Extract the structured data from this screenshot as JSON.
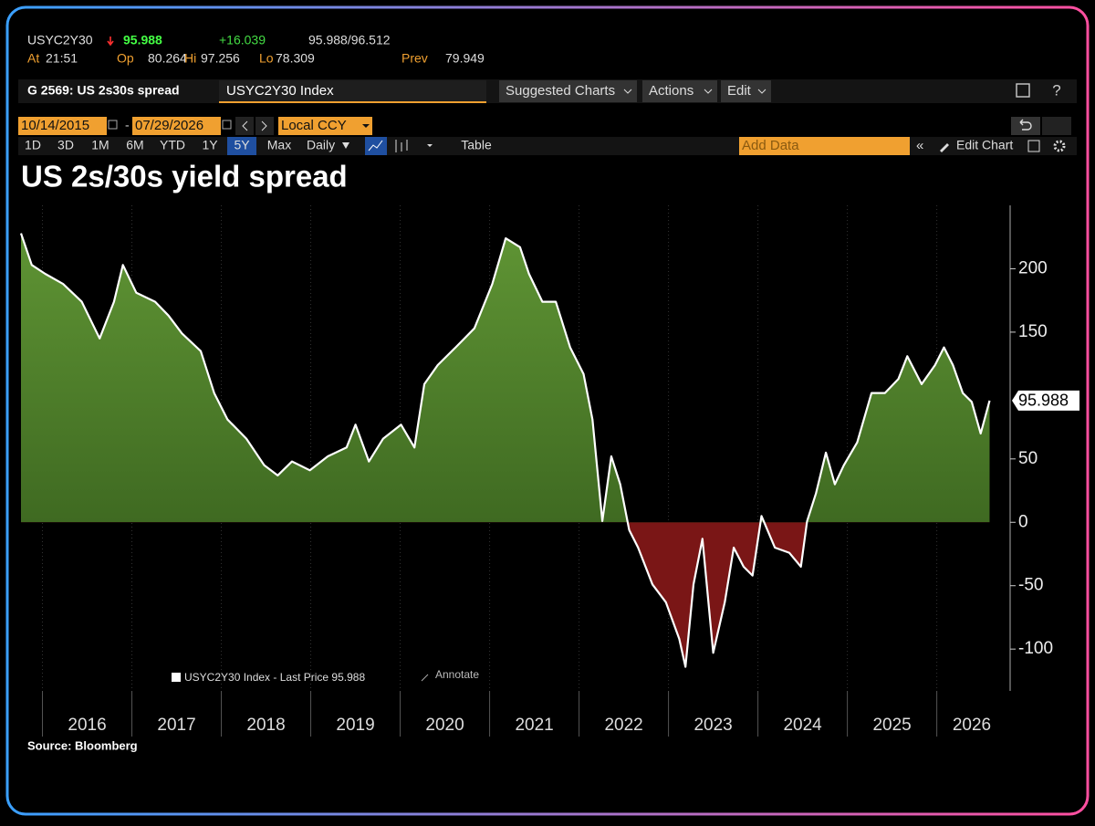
{
  "header": {
    "ticker": "USYC2Y30",
    "last": "95.988",
    "change": "+16.039",
    "bid_ask": "95.988/96.512",
    "at_label": "At",
    "time": "21:51",
    "open_label": "Op",
    "open": "80.264",
    "high_label": "Hi",
    "high": "97.256",
    "low_label": "Lo",
    "low": "78.309",
    "prev_label": "Prev",
    "prev": "79.949"
  },
  "toolbar": {
    "function": "G 2569: US 2s30s spread",
    "security": "USYC2Y30 Index",
    "buttons": [
      "Suggested Charts",
      "Actions",
      "Edit"
    ],
    "start_date": "10/14/2015",
    "date_separator": "-",
    "end_date": "07/29/2026",
    "currency": "Local CCY",
    "periods": [
      "1D",
      "3D",
      "1M",
      "6M",
      "YTD",
      "1Y",
      "5Y",
      "Max"
    ],
    "selected_period": 6,
    "frequency": "Daily",
    "table": "Table",
    "add_data": "Add Data",
    "edit_chart": "Edit Chart"
  },
  "chart_data": {
    "type": "area",
    "title": "US 2s/30s yield spread",
    "x": [
      2015.76,
      2015.88,
      2016.03,
      2016.23,
      2016.44,
      2016.64,
      2016.8,
      2016.9,
      2017.05,
      2017.26,
      2017.41,
      2017.56,
      2017.77,
      2017.92,
      2018.07,
      2018.28,
      2018.48,
      2018.63,
      2018.79,
      2018.99,
      2019.19,
      2019.4,
      2019.5,
      2019.65,
      2019.81,
      2020.01,
      2020.16,
      2020.27,
      2020.42,
      2020.62,
      2020.83,
      2021.03,
      2021.18,
      2021.34,
      2021.44,
      2021.59,
      2021.74,
      2021.9,
      2022.05,
      2022.15,
      2022.26,
      2022.36,
      2022.46,
      2022.56,
      2022.66,
      2022.82,
      2022.97,
      2023.12,
      2023.19,
      2023.28,
      2023.38,
      2023.5,
      2023.63,
      2023.73,
      2023.84,
      2023.94,
      2024.04,
      2024.19,
      2024.35,
      2024.48,
      2024.55,
      2024.65,
      2024.76,
      2024.86,
      2024.96,
      2025.11,
      2025.27,
      2025.42,
      2025.57,
      2025.67,
      2025.83,
      2025.98,
      2026.08,
      2026.18,
      2026.29,
      2026.39,
      2026.49,
      2026.59
    ],
    "series": [
      {
        "name": "USYC2Y30 Index - Last Price 95.988",
        "color": "#ffffff",
        "values": [
          228,
          203,
          196,
          188,
          174,
          145,
          174,
          203,
          181,
          174,
          163,
          149,
          135,
          102,
          81,
          66,
          45,
          37,
          48,
          41,
          52,
          59,
          77,
          48,
          66,
          77,
          59,
          109,
          124,
          138,
          153,
          188,
          224,
          217,
          196,
          174,
          174,
          138,
          117,
          81,
          1,
          52,
          30,
          -6,
          -20,
          -49,
          -63,
          -92,
          -114,
          -49,
          -13,
          -103,
          -63,
          -20,
          -35,
          -42,
          5,
          -20,
          -24,
          -35,
          1,
          23,
          55,
          30,
          45,
          63,
          102,
          102,
          113,
          131,
          109,
          124,
          138,
          124,
          102,
          95,
          70,
          95.988
        ]
      }
    ],
    "positive_color": "#4f7f2a",
    "negative_color": "#7a1616",
    "last_value_label": "95.988",
    "xlim": [
      2015.76,
      2026.82
    ],
    "xticks": [
      2016,
      2017,
      2018,
      2019,
      2020,
      2021,
      2022,
      2023,
      2024,
      2025,
      2026
    ],
    "ylim": [
      -133,
      250
    ],
    "yticks": [
      -100,
      -50,
      0,
      50,
      150,
      200
    ],
    "annotate": "Annotate",
    "source": "Source: Bloomberg"
  }
}
